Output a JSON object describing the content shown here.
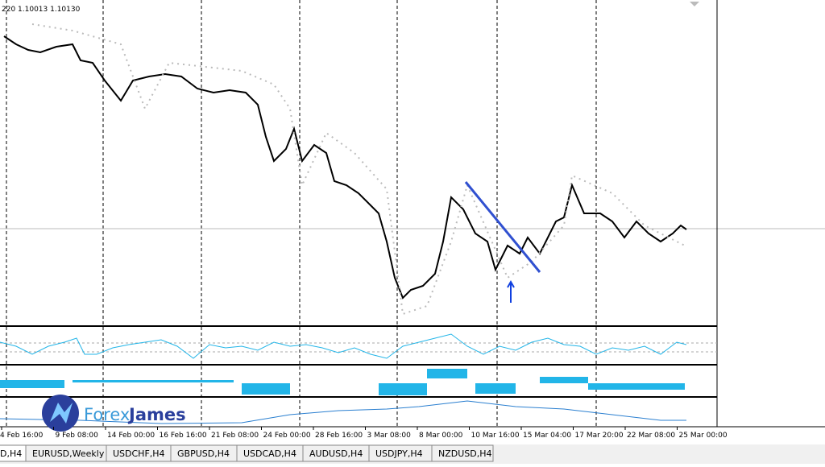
{
  "header": {
    "quote": "220 1.10013 1.10130"
  },
  "x_axis": {
    "labels": [
      "4 Feb 16:00",
      "9 Feb 08:00",
      "14 Feb 00:00",
      "16 Feb 16:00",
      "21 Feb 08:00",
      "24 Feb 00:00",
      "28 Feb 16:00",
      "3 Mar 08:00",
      "8 Mar 00:00",
      "10 Mar 16:00",
      "15 Mar 04:00",
      "17 Mar 20:00",
      "22 Mar 08:00",
      "25 Mar 00:00"
    ]
  },
  "tabs": [
    "D,H4",
    "EURUSD,Weekly",
    "USDCHF,H4",
    "GBPUSD,H4",
    "USDCAD,H4",
    "AUDUSD,H4",
    "USDJPY,H4",
    "NZDUSD,H4"
  ],
  "logo": {
    "first": "Forex",
    "second": "James"
  }
}
